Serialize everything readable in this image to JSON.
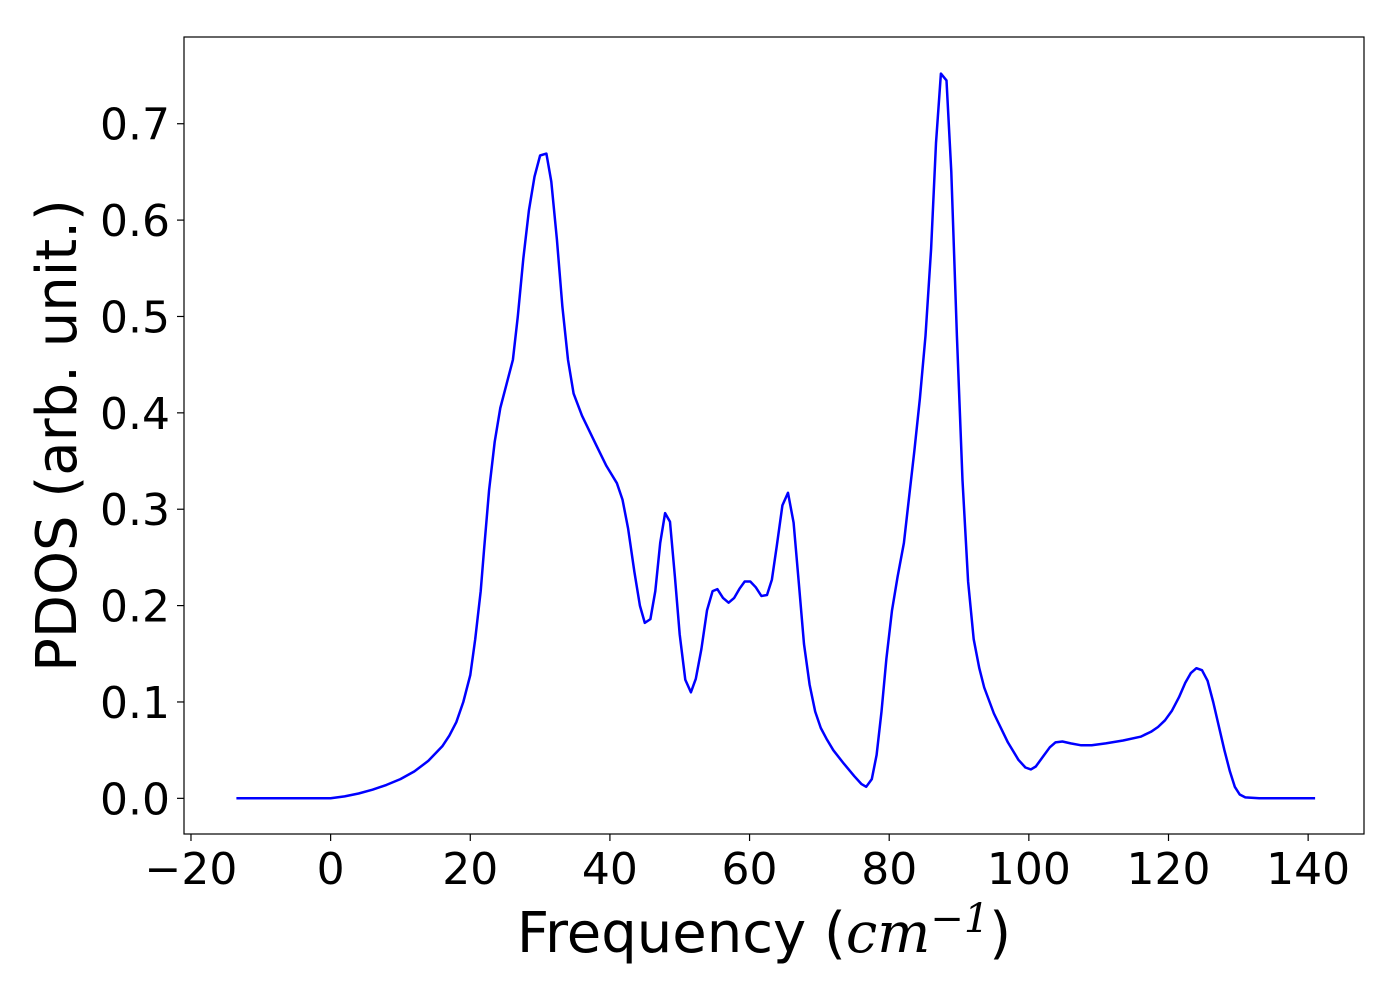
{
  "chart_data": {
    "type": "line",
    "title": "",
    "xlabel_text": "Frequency (",
    "xlabel_math": "cm",
    "xlabel_sup": "−1",
    "xlabel_close": ")",
    "ylabel": "PDOS (arb. unit.)",
    "xlim": [
      -21,
      148
    ],
    "ylim": [
      -0.037,
      0.79
    ],
    "xticks": [
      -20,
      0,
      20,
      40,
      60,
      80,
      100,
      120,
      140
    ],
    "xtick_labels": [
      "−20",
      "0",
      "20",
      "40",
      "60",
      "80",
      "100",
      "120",
      "140"
    ],
    "yticks": [
      0.0,
      0.1,
      0.2,
      0.3,
      0.4,
      0.5,
      0.6,
      0.7
    ],
    "ytick_labels": [
      "0.0",
      "0.1",
      "0.2",
      "0.3",
      "0.4",
      "0.5",
      "0.6",
      "0.7"
    ],
    "grid": false,
    "legend": "none",
    "series": [
      {
        "color": "#0000ff",
        "x": [
          -13.5,
          -5,
          0,
          2,
          4,
          6,
          8,
          10,
          12,
          14,
          16,
          17,
          18,
          19,
          20,
          20.7,
          21.5,
          22,
          22.7,
          23.5,
          24.3,
          25.2,
          26.1,
          26.8,
          27.6,
          28.4,
          29.2,
          30,
          30.9,
          31.6,
          32.4,
          33.2,
          34,
          34.8,
          36,
          38,
          39.5,
          41,
          41.8,
          42.6,
          43.5,
          44.3,
          45,
          45.8,
          46.5,
          47.2,
          47.9,
          48.6,
          49.3,
          50,
          50.8,
          51.6,
          52.3,
          53.1,
          53.9,
          54.7,
          55.4,
          56.2,
          57,
          57.8,
          58.6,
          59.3,
          60.1,
          60.9,
          61.7,
          62.5,
          63.2,
          63.9,
          64.7,
          65.5,
          66.3,
          67.1,
          67.8,
          68.6,
          69.4,
          70.2,
          71,
          72,
          73.5,
          75,
          76,
          76.7,
          77.5,
          78.2,
          78.9,
          79.6,
          80.4,
          81.2,
          82.1,
          82.8,
          83.6,
          84.4,
          85.2,
          86,
          86.7,
          87.4,
          88.2,
          88.9,
          89.7,
          90.5,
          91.3,
          92.1,
          92.9,
          93.6,
          95,
          97,
          98.5,
          99.5,
          100.3,
          101,
          102,
          103,
          103.8,
          104.8,
          106,
          107.5,
          109,
          111,
          113.5,
          116,
          117.5,
          118.5,
          119.5,
          120.5,
          121.5,
          122.4,
          123.2,
          124,
          124.8,
          125.6,
          126.4,
          127.2,
          128,
          128.8,
          129.5,
          130.2,
          131,
          133,
          136,
          141
        ],
        "values": [
          0.0,
          0.0,
          0.0,
          0.002,
          0.005,
          0.009,
          0.014,
          0.02,
          0.028,
          0.039,
          0.054,
          0.065,
          0.079,
          0.1,
          0.128,
          0.165,
          0.215,
          0.26,
          0.32,
          0.37,
          0.405,
          0.43,
          0.455,
          0.5,
          0.56,
          0.61,
          0.645,
          0.667,
          0.669,
          0.64,
          0.58,
          0.51,
          0.455,
          0.42,
          0.397,
          0.367,
          0.345,
          0.327,
          0.31,
          0.28,
          0.235,
          0.2,
          0.182,
          0.186,
          0.215,
          0.265,
          0.296,
          0.287,
          0.23,
          0.17,
          0.123,
          0.11,
          0.124,
          0.155,
          0.195,
          0.215,
          0.217,
          0.208,
          0.203,
          0.208,
          0.218,
          0.225,
          0.225,
          0.219,
          0.21,
          0.211,
          0.227,
          0.262,
          0.304,
          0.317,
          0.286,
          0.22,
          0.16,
          0.118,
          0.09,
          0.073,
          0.062,
          0.05,
          0.036,
          0.023,
          0.015,
          0.012,
          0.02,
          0.045,
          0.09,
          0.145,
          0.195,
          0.23,
          0.265,
          0.31,
          0.36,
          0.415,
          0.48,
          0.57,
          0.68,
          0.752,
          0.745,
          0.65,
          0.48,
          0.33,
          0.225,
          0.165,
          0.135,
          0.115,
          0.088,
          0.058,
          0.04,
          0.032,
          0.03,
          0.033,
          0.043,
          0.053,
          0.058,
          0.059,
          0.057,
          0.055,
          0.055,
          0.057,
          0.06,
          0.064,
          0.069,
          0.074,
          0.081,
          0.091,
          0.105,
          0.12,
          0.13,
          0.135,
          0.133,
          0.122,
          0.1,
          0.075,
          0.05,
          0.028,
          0.012,
          0.004,
          0.001,
          0.0,
          0.0,
          0.0
        ]
      }
    ]
  }
}
